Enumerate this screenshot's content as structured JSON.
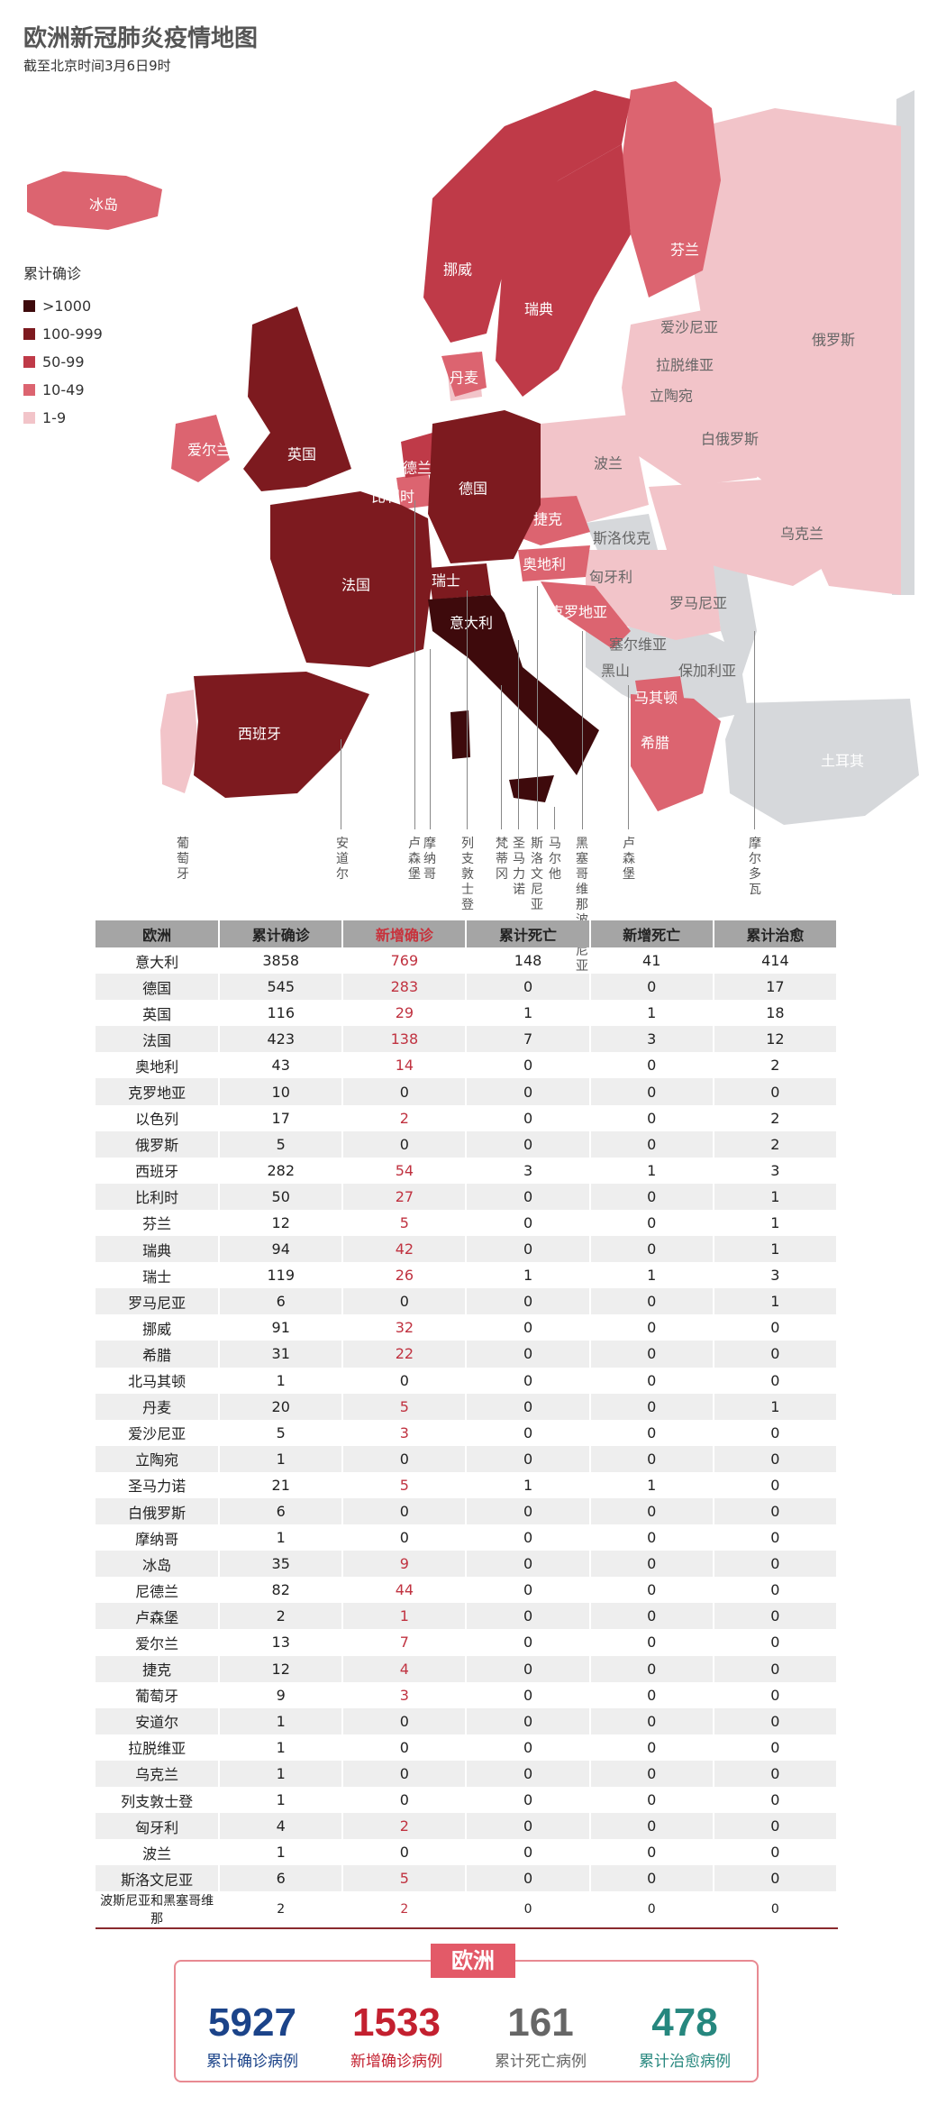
{
  "title": "欧洲新冠肺炎疫情地图",
  "subtitle": "截至北京时间3月6日9时",
  "legend": {
    "title": "累计确诊",
    "items": [
      {
        "label": ">1000",
        "color": "#3e0a0c"
      },
      {
        "label": "100-999",
        "color": "#7d1a1f"
      },
      {
        "label": "50-99",
        "color": "#bf3a48"
      },
      {
        "label": "10-49",
        "color": "#dc6470"
      },
      {
        "label": "1-9",
        "color": "#f2c4c9"
      }
    ]
  },
  "colors": {
    "no_data": "#d6d8db",
    "accent": "#e35a68",
    "total_confirmed": "#1b4389",
    "new_confirmed": "#c3202f",
    "deaths": "#666666",
    "recovered": "#26877e"
  },
  "map_labels": {
    "iceland": "冰岛",
    "norway": "挪威",
    "sweden": "瑞典",
    "finland": "芬兰",
    "russia": "俄罗斯",
    "estonia": "爱沙尼亚",
    "latvia": "拉脱维亚",
    "lithuania": "立陶宛",
    "belarus": "白俄罗斯",
    "denmark": "丹麦",
    "uk": "英国",
    "ireland": "爱尔兰",
    "netherlands": "尼德兰",
    "belgium": "比利时",
    "germany": "德国",
    "poland": "波兰",
    "czech": "捷克",
    "slovakia": "斯洛伐克",
    "ukraine": "乌克兰",
    "austria": "奥地利",
    "hungary": "匈牙利",
    "france": "法国",
    "switzerland": "瑞士",
    "italy": "意大利",
    "croatia": "克罗地亚",
    "romania": "罗马尼亚",
    "serbia": "塞尔维亚",
    "montenegro": "黑山",
    "bulgaria": "保加利亚",
    "north_macedonia": "马其顿",
    "greece": "希腊",
    "spain": "西班牙",
    "turkey": "土耳其",
    "portugal": "葡萄牙",
    "andorra": "安道尔",
    "luxembourg": "卢森堡",
    "monaco": "摩纳哥",
    "liechtenstein": "列支敦士登",
    "vatican": "梵蒂冈",
    "san_marino": "圣马力诺",
    "slovenia": "斯洛文尼亚",
    "malta": "马尔他",
    "bosnia": "黑塞哥维那波斯尼亚和",
    "luxembourg2": "卢森堡",
    "moldova": "摩尔多瓦"
  },
  "table": {
    "headers": [
      "欧洲",
      "累计确诊",
      "新增确诊",
      "累计死亡",
      "新增死亡",
      "累计治愈"
    ],
    "rows": [
      [
        "意大利",
        "3858",
        "769",
        "148",
        "41",
        "414"
      ],
      [
        "德国",
        "545",
        "283",
        "0",
        "0",
        "17"
      ],
      [
        "英国",
        "116",
        "29",
        "1",
        "1",
        "18"
      ],
      [
        "法国",
        "423",
        "138",
        "7",
        "3",
        "12"
      ],
      [
        "奥地利",
        "43",
        "14",
        "0",
        "0",
        "2"
      ],
      [
        "克罗地亚",
        "10",
        "0",
        "0",
        "0",
        "0"
      ],
      [
        "以色列",
        "17",
        "2",
        "0",
        "0",
        "2"
      ],
      [
        "俄罗斯",
        "5",
        "0",
        "0",
        "0",
        "2"
      ],
      [
        "西班牙",
        "282",
        "54",
        "3",
        "1",
        "3"
      ],
      [
        "比利时",
        "50",
        "27",
        "0",
        "0",
        "1"
      ],
      [
        "芬兰",
        "12",
        "5",
        "0",
        "0",
        "1"
      ],
      [
        "瑞典",
        "94",
        "42",
        "0",
        "0",
        "1"
      ],
      [
        "瑞士",
        "119",
        "26",
        "1",
        "1",
        "3"
      ],
      [
        "罗马尼亚",
        "6",
        "0",
        "0",
        "0",
        "1"
      ],
      [
        "挪威",
        "91",
        "32",
        "0",
        "0",
        "0"
      ],
      [
        "希腊",
        "31",
        "22",
        "0",
        "0",
        "0"
      ],
      [
        "北马其顿",
        "1",
        "0",
        "0",
        "0",
        "0"
      ],
      [
        "丹麦",
        "20",
        "5",
        "0",
        "0",
        "1"
      ],
      [
        "爱沙尼亚",
        "5",
        "3",
        "0",
        "0",
        "0"
      ],
      [
        "立陶宛",
        "1",
        "0",
        "0",
        "0",
        "0"
      ],
      [
        "圣马力诺",
        "21",
        "5",
        "1",
        "1",
        "0"
      ],
      [
        "白俄罗斯",
        "6",
        "0",
        "0",
        "0",
        "0"
      ],
      [
        "摩纳哥",
        "1",
        "0",
        "0",
        "0",
        "0"
      ],
      [
        "冰岛",
        "35",
        "9",
        "0",
        "0",
        "0"
      ],
      [
        "尼德兰",
        "82",
        "44",
        "0",
        "0",
        "0"
      ],
      [
        "卢森堡",
        "2",
        "1",
        "0",
        "0",
        "0"
      ],
      [
        "爱尔兰",
        "13",
        "7",
        "0",
        "0",
        "0"
      ],
      [
        "捷克",
        "12",
        "4",
        "0",
        "0",
        "0"
      ],
      [
        "葡萄牙",
        "9",
        "3",
        "0",
        "0",
        "0"
      ],
      [
        "安道尔",
        "1",
        "0",
        "0",
        "0",
        "0"
      ],
      [
        "拉脱维亚",
        "1",
        "0",
        "0",
        "0",
        "0"
      ],
      [
        "乌克兰",
        "1",
        "0",
        "0",
        "0",
        "0"
      ],
      [
        "列支敦士登",
        "1",
        "0",
        "0",
        "0",
        "0"
      ],
      [
        "匈牙利",
        "4",
        "2",
        "0",
        "0",
        "0"
      ],
      [
        "波兰",
        "1",
        "0",
        "0",
        "0",
        "0"
      ],
      [
        "斯洛文尼亚",
        "6",
        "5",
        "0",
        "0",
        "0"
      ],
      [
        "波斯尼亚和黑塞哥维那",
        "2",
        "2",
        "0",
        "0",
        "0"
      ]
    ]
  },
  "summary": {
    "badge": "欧洲",
    "total_confirmed": {
      "value": "5927",
      "label": "累计确诊病例"
    },
    "new_confirmed": {
      "value": "1533",
      "label": "新增确诊病例"
    },
    "deaths": {
      "value": "161",
      "label": "累计死亡病例"
    },
    "recovered": {
      "value": "478",
      "label": "累计治愈病例"
    }
  }
}
